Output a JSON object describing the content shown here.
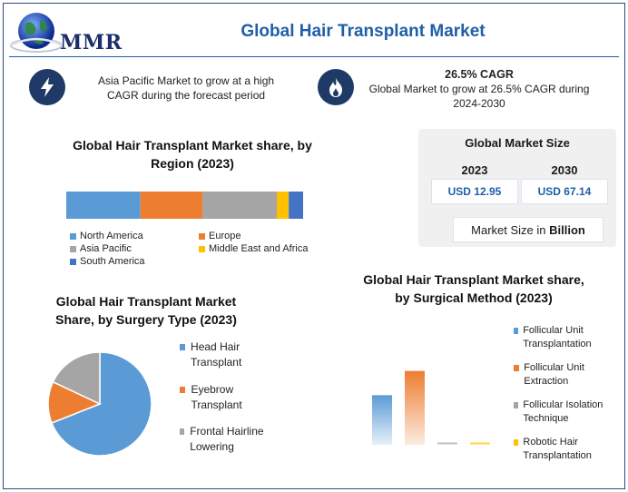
{
  "header": {
    "logo_text": "MMR",
    "title": "Global Hair Transplant Market"
  },
  "highlights": {
    "left": {
      "icon": "lightning-icon",
      "text": "Asia Pacific Market to grow at a high CAGR during the forecast period"
    },
    "right": {
      "icon": "flame-icon",
      "cagr": "26.5% CAGR",
      "text": "Global Market to grow at 26.5% CAGR during 2024-2030"
    }
  },
  "market_size": {
    "title": "Global Market Size",
    "year_2023": "2023",
    "year_2030": "2030",
    "value_2023": "USD 12.95",
    "value_2030": "USD 67.14",
    "unit_prefix": "Market Size in ",
    "unit_bold": "Billion"
  },
  "colors": {
    "blue": "#5b9bd5",
    "orange": "#ed7d31",
    "gray": "#a5a5a5",
    "yellow": "#ffc000",
    "dark_blue": "#4472c4",
    "navy": "#1f3a66",
    "title_blue": "#1f5fa8"
  },
  "chart_data": [
    {
      "type": "bar",
      "orientation": "horizontal-stacked",
      "title": "Global Hair Transplant Market share, by Region (2023)",
      "categories": [
        "North America",
        "Europe",
        "Asia Pacific",
        "Middle East and Africa",
        "South America"
      ],
      "values": [
        31,
        26,
        31,
        5,
        6
      ],
      "colors": [
        "#5b9bd5",
        "#ed7d31",
        "#a5a5a5",
        "#ffc000",
        "#4472c4"
      ],
      "legend_position": "bottom"
    },
    {
      "type": "pie",
      "title": "Global Hair Transplant Market Share, by Surgery Type (2023)",
      "categories": [
        "Head Hair Transplant",
        "Eyebrow Transplant",
        "Frontal Hairline Lowering"
      ],
      "values": [
        69,
        13,
        18
      ],
      "colors": [
        "#5b9bd5",
        "#ed7d31",
        "#a5a5a5"
      ],
      "legend_position": "right"
    },
    {
      "type": "bar",
      "title": "Global Hair Transplant Market share, by Surgical Method (2023)",
      "categories": [
        "Follicular Unit Transplantation",
        "Follicular Unit Extraction",
        "Follicular Isolation Technique",
        "Robotic Hair Transplantation"
      ],
      "values": [
        45,
        67,
        2,
        2
      ],
      "colors": [
        "#5b9bd5",
        "#ed7d31",
        "#a5a5a5",
        "#ffc000"
      ],
      "legend_position": "right",
      "ylim": [
        0,
        70
      ]
    }
  ]
}
